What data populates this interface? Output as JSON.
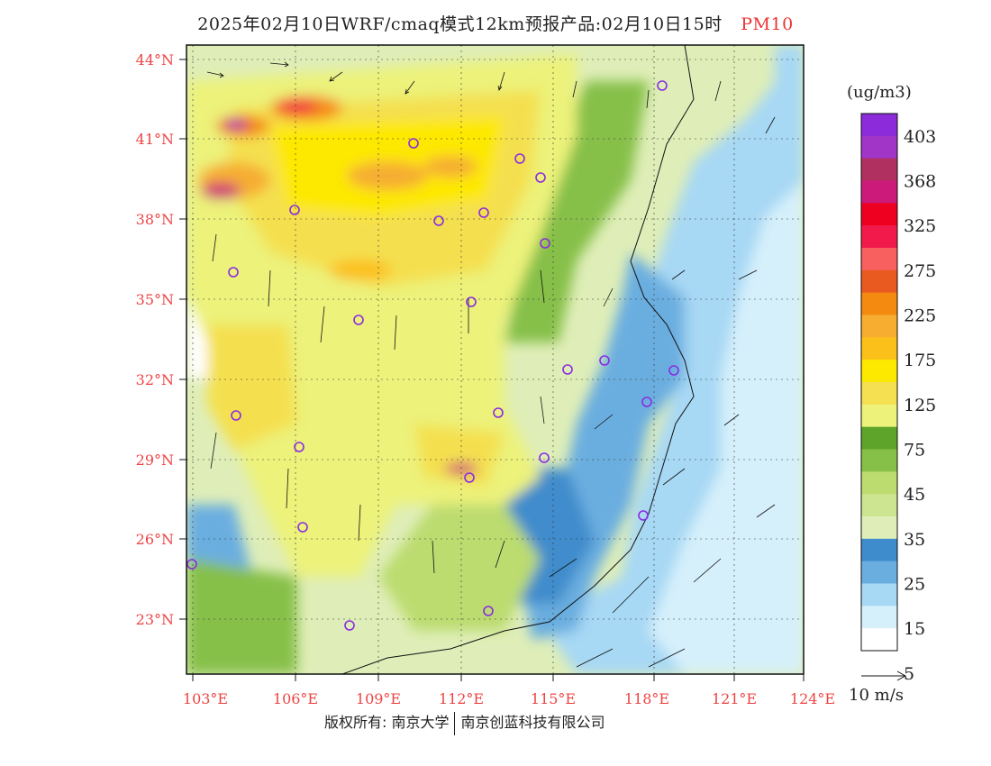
{
  "title": {
    "main": "2025年02月10日WRF/cmaq模式12km预报产品:02月10日15时",
    "pollutant": "PM10"
  },
  "map": {
    "lat_labels": [
      "44°N",
      "41°N",
      "38°N",
      "35°N",
      "32°N",
      "29°N",
      "26°N",
      "23°N"
    ],
    "lon_labels": [
      "103°E",
      "106°E",
      "109°E",
      "112°E",
      "115°E",
      "118°E",
      "121°E",
      "124°E"
    ]
  },
  "legend": {
    "unit": "(ug/m3)",
    "labels": [
      "403",
      "368",
      "325",
      "275",
      "225",
      "175",
      "125",
      "75",
      "45",
      "35",
      "25",
      "15",
      "5"
    ],
    "colors": [
      "#8c2bd9",
      "#a035c8",
      "#b03060",
      "#cc1a7a",
      "#ee0020",
      "#f21a4a",
      "#f86060",
      "#e85a20",
      "#f58a10",
      "#f6ad30",
      "#fcc01a",
      "#fde800",
      "#f4e050",
      "#ecf27a",
      "#5fa42a",
      "#86c048",
      "#bcdc70",
      "#cde490",
      "#dfeeb8",
      "#3f8ccc",
      "#6aaee0",
      "#a7d8f4",
      "#d6f0fb",
      "#ffffff"
    ],
    "wind_scale_label": "10 m/s"
  },
  "footer": {
    "left": "版权所有: 南京大学",
    "right": "南京创蓝科技有限公司"
  },
  "colors": {
    "axis_label": "#ee4444",
    "station_marker": "#8a2be2"
  }
}
